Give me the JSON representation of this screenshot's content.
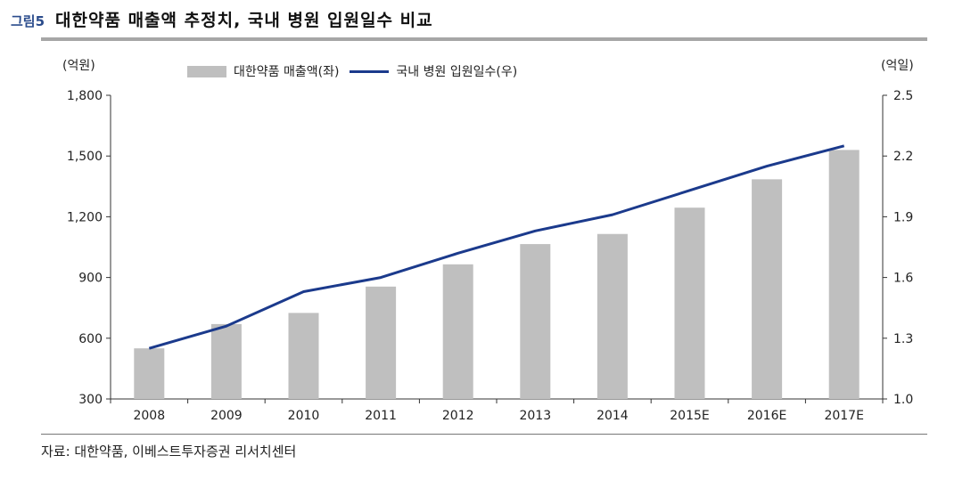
{
  "header": {
    "figure_label": "그림5",
    "title": "대한약품 매출액 추정치, 국내 병원 입원일수 비교"
  },
  "units": {
    "left": "(억원)",
    "right": "(억일)"
  },
  "legend": {
    "bar_label": "대한약품 매출액(좌)",
    "line_label": "국내 병원 입원일수(우)"
  },
  "colors": {
    "bar": "#bfbfbf",
    "line": "#1b3a8c",
    "axis": "#333333"
  },
  "chart_data": {
    "type": "bar+line",
    "title": "대한약품 매출액 추정치, 국내 병원 입원일수 비교",
    "categories": [
      "2008",
      "2009",
      "2010",
      "2011",
      "2012",
      "2013",
      "2014",
      "2015E",
      "2016E",
      "2017E"
    ],
    "series": [
      {
        "name": "대한약품 매출액(좌)",
        "type": "bar",
        "axis": "left",
        "values": [
          550,
          670,
          725,
          855,
          965,
          1065,
          1115,
          1245,
          1385,
          1530
        ]
      },
      {
        "name": "국내 병원 입원일수(우)",
        "type": "line",
        "axis": "right",
        "values": [
          1.25,
          1.36,
          1.53,
          1.6,
          1.72,
          1.83,
          1.91,
          2.03,
          2.15,
          2.25
        ]
      }
    ],
    "y_left": {
      "label": "(억원)",
      "lim": [
        300,
        1800
      ],
      "ticks": [
        "300",
        "600",
        "900",
        "1,200",
        "1,500",
        "1,800"
      ],
      "tick_values": [
        300,
        600,
        900,
        1200,
        1500,
        1800
      ]
    },
    "y_right": {
      "label": "(억일)",
      "lim": [
        1.0,
        2.5
      ],
      "ticks": [
        "1.0",
        "1.3",
        "1.6",
        "1.9",
        "2.2",
        "2.5"
      ],
      "tick_values": [
        1.0,
        1.3,
        1.6,
        1.9,
        2.2,
        2.5
      ]
    },
    "legend_position": "top",
    "grid": false
  },
  "footer": {
    "source": "자료: 대한약품, 이베스트투자증권 리서치센터"
  }
}
